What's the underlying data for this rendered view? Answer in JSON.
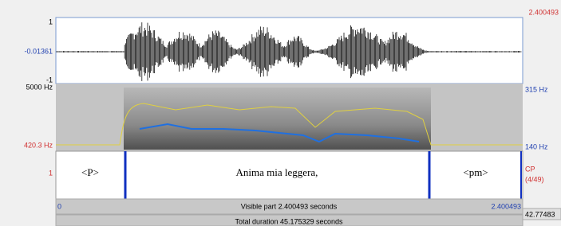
{
  "window": {
    "selection_end": "2.400493"
  },
  "waveform": {
    "top": "1",
    "center": "-0.01361",
    "bottom": "-1"
  },
  "spectrogram": {
    "freq_top": "5000 Hz",
    "freq_bottom": "420.3 Hz",
    "pitch_top": "315 Hz",
    "pitch_bottom": "140 Hz"
  },
  "tier": {
    "number": "1",
    "intervals": [
      "<P>",
      "Anima mia leggera,",
      "<pm>"
    ],
    "name": "CP",
    "count": "(4/49)"
  },
  "footer": {
    "start": "0",
    "visible": "Visible part 2.400493 seconds",
    "end": "2.400493",
    "total_end": "42.77483",
    "total": "Total duration 45.175329 seconds"
  }
}
